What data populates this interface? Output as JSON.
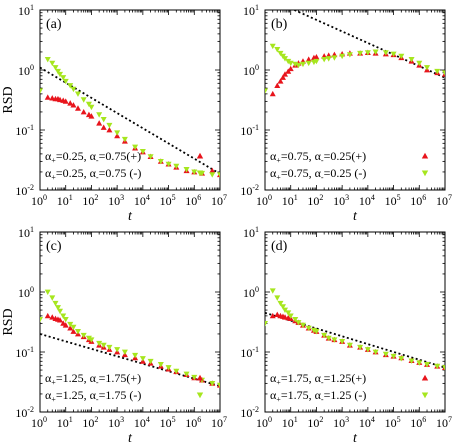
{
  "chart_data": [
    {
      "type": "scatter",
      "panel_label": "(a)",
      "xlabel": "t",
      "ylabel": "RSD",
      "x_scale": "log",
      "y_scale": "log",
      "xlim": [
        1,
        10000000
      ],
      "ylim": [
        0.01,
        10
      ],
      "x_ticks": {
        "base": "10",
        "exponents": [
          "0",
          "1",
          "2",
          "3",
          "4",
          "5",
          "6",
          "7"
        ]
      },
      "y_ticks": {
        "base": "10",
        "exponents": [
          "-2",
          "-1",
          "0",
          "1"
        ]
      },
      "series": [
        {
          "name": "α+=0.25, α-=0.75(+)",
          "marker": "triangle-up",
          "color": "#e8141c",
          "x": [
            2,
            3,
            4,
            5,
            6,
            8,
            10,
            15,
            20,
            30,
            50,
            80,
            100,
            200,
            300,
            500,
            1000,
            2000,
            5000,
            10000,
            20000,
            50000,
            100000,
            200000,
            500000,
            1000000,
            2000000,
            5000000,
            10000000
          ],
          "y": [
            0.35,
            0.34,
            0.33,
            0.33,
            0.32,
            0.31,
            0.3,
            0.28,
            0.26,
            0.23,
            0.2,
            0.18,
            0.17,
            0.13,
            0.11,
            0.1,
            0.08,
            0.065,
            0.05,
            0.043,
            0.036,
            0.03,
            0.027,
            0.024,
            0.021,
            0.02,
            0.019,
            0.021,
            0.018
          ]
        },
        {
          "name": "α+=0.25, α-=0.75 (-)",
          "marker": "triangle-down",
          "color": "#a6e61e",
          "x": [
            1,
            2,
            3,
            4,
            5,
            6,
            8,
            10,
            15,
            20,
            30,
            50,
            80,
            100,
            200,
            300,
            500,
            1000,
            2000,
            5000,
            10000,
            20000,
            50000,
            100000,
            200000,
            500000,
            1000000,
            2000000,
            5000000,
            10000000
          ],
          "y": [
            0.45,
            1.5,
            1.3,
            1.1,
            0.95,
            0.85,
            0.75,
            0.65,
            0.55,
            0.48,
            0.4,
            0.32,
            0.27,
            0.24,
            0.18,
            0.15,
            0.12,
            0.09,
            0.07,
            0.052,
            0.044,
            0.036,
            0.03,
            0.027,
            0.025,
            0.022,
            0.02,
            0.019,
            0.018,
            0.018
          ]
        }
      ],
      "reference_line": {
        "style": "dotted",
        "x": [
          1,
          10000000
        ],
        "y": [
          1.1,
          0.0186
        ]
      },
      "legend_position": "bottom-left"
    },
    {
      "type": "scatter",
      "panel_label": "(b)",
      "xlabel": "t",
      "ylabel": "",
      "x_scale": "log",
      "y_scale": "log",
      "xlim": [
        1,
        10000000
      ],
      "ylim": [
        0.01,
        10
      ],
      "x_ticks": {
        "base": "10",
        "exponents": [
          "0",
          "1",
          "2",
          "3",
          "4",
          "5",
          "6",
          "7"
        ]
      },
      "y_ticks": {
        "base": "10",
        "exponents": [
          "-2",
          "-1",
          "0",
          "1"
        ]
      },
      "series": [
        {
          "name": "α+=0.75, α-=0.25(+)",
          "marker": "triangle-up",
          "color": "#e8141c",
          "x": [
            2,
            3,
            4,
            5,
            6,
            8,
            10,
            15,
            20,
            30,
            50,
            80,
            100,
            200,
            300,
            500,
            1000,
            2000,
            5000,
            10000,
            20000,
            50000,
            100000,
            200000,
            500000,
            1000000,
            2000000,
            5000000,
            10000000
          ],
          "y": [
            0.4,
            0.55,
            0.65,
            0.75,
            0.85,
            0.95,
            1.05,
            1.2,
            1.3,
            1.4,
            1.5,
            1.6,
            1.65,
            1.7,
            1.75,
            1.8,
            1.85,
            1.9,
            1.9,
            1.95,
            1.9,
            1.85,
            1.8,
            1.6,
            1.4,
            1.2,
            1.0,
            0.9,
            0.85
          ]
        },
        {
          "name": "α+=0.75, α-=0.25 (-)",
          "marker": "triangle-down",
          "color": "#a6e61e",
          "x": [
            1,
            2,
            3,
            4,
            5,
            6,
            8,
            10,
            15,
            20,
            30,
            50,
            80,
            100,
            200,
            300,
            500,
            1000,
            2000,
            5000,
            10000,
            20000,
            50000,
            100000,
            200000,
            500000,
            1000000,
            2000000,
            5000000,
            10000000
          ],
          "y": [
            0.45,
            2.5,
            2.2,
            1.9,
            1.7,
            1.55,
            1.4,
            1.3,
            1.25,
            1.2,
            1.25,
            1.3,
            1.35,
            1.4,
            1.5,
            1.55,
            1.6,
            1.7,
            1.8,
            1.9,
            1.95,
            2.0,
            1.95,
            1.85,
            1.7,
            1.5,
            1.3,
            1.1,
            0.95,
            0.9
          ]
        }
      ],
      "reference_line": {
        "style": "dotted",
        "x": [
          14,
          10000000
        ],
        "y": [
          10,
          0.744
        ]
      },
      "legend_position": "bottom-left"
    },
    {
      "type": "scatter",
      "panel_label": "(c)",
      "xlabel": "t",
      "ylabel": "RSD",
      "x_scale": "log",
      "y_scale": "log",
      "xlim": [
        1,
        10000000
      ],
      "ylim": [
        0.01,
        10
      ],
      "x_ticks": {
        "base": "10",
        "exponents": [
          "0",
          "1",
          "2",
          "3",
          "4",
          "5",
          "6",
          "7"
        ]
      },
      "y_ticks": {
        "base": "10",
        "exponents": [
          "-2",
          "-1",
          "0",
          "1"
        ]
      },
      "series": [
        {
          "name": "α+=1.25, α-=1.75(+)",
          "marker": "triangle-up",
          "color": "#e8141c",
          "x": [
            2,
            3,
            4,
            5,
            6,
            8,
            10,
            15,
            20,
            30,
            50,
            80,
            100,
            200,
            300,
            500,
            1000,
            2000,
            5000,
            10000,
            20000,
            50000,
            100000,
            200000,
            500000,
            1000000,
            2000000,
            5000000,
            10000000
          ],
          "y": [
            0.4,
            0.38,
            0.36,
            0.35,
            0.34,
            0.3,
            0.28,
            0.25,
            0.22,
            0.2,
            0.18,
            0.16,
            0.15,
            0.13,
            0.12,
            0.11,
            0.1,
            0.09,
            0.08,
            0.07,
            0.065,
            0.058,
            0.052,
            0.047,
            0.042,
            0.037,
            0.034,
            0.03,
            0.028
          ]
        },
        {
          "name": "α+=1.25, α-=1.75 (-)",
          "marker": "triangle-down",
          "color": "#a6e61e",
          "x": [
            1,
            2,
            3,
            4,
            5,
            6,
            8,
            10,
            15,
            20,
            30,
            50,
            80,
            100,
            200,
            300,
            500,
            1000,
            2000,
            5000,
            10000,
            20000,
            50000,
            100000,
            200000,
            500000,
            1000000,
            2000000,
            5000000,
            10000000
          ],
          "y": [
            0.35,
            1.0,
            0.8,
            0.65,
            0.55,
            0.48,
            0.4,
            0.35,
            0.29,
            0.26,
            0.22,
            0.19,
            0.17,
            0.16,
            0.14,
            0.13,
            0.12,
            0.11,
            0.1,
            0.088,
            0.078,
            0.07,
            0.062,
            0.055,
            0.048,
            0.043,
            0.038,
            0.034,
            0.03,
            0.028
          ]
        }
      ],
      "reference_line": {
        "style": "dotted",
        "x": [
          1,
          10000000
        ],
        "y": [
          0.2,
          0.027
        ]
      },
      "legend_position": "bottom-left"
    },
    {
      "type": "scatter",
      "panel_label": "(d)",
      "xlabel": "t",
      "ylabel": "",
      "x_scale": "log",
      "y_scale": "log",
      "xlim": [
        1,
        10000000
      ],
      "ylim": [
        0.01,
        10
      ],
      "x_ticks": {
        "base": "10",
        "exponents": [
          "0",
          "1",
          "2",
          "3",
          "4",
          "5",
          "6",
          "7"
        ]
      },
      "y_ticks": {
        "base": "10",
        "exponents": [
          "-2",
          "-1",
          "0",
          "1"
        ]
      },
      "series": [
        {
          "name": "α+=1.75, α-=1.25(+)",
          "marker": "triangle-up",
          "color": "#e8141c",
          "x": [
            2,
            3,
            4,
            5,
            6,
            8,
            10,
            15,
            20,
            30,
            50,
            80,
            100,
            200,
            300,
            500,
            1000,
            2000,
            5000,
            10000,
            20000,
            50000,
            100000,
            200000,
            500000,
            1000000,
            2000000,
            5000000,
            10000000
          ],
          "y": [
            0.4,
            0.42,
            0.4,
            0.39,
            0.38,
            0.37,
            0.36,
            0.33,
            0.31,
            0.28,
            0.25,
            0.23,
            0.22,
            0.19,
            0.17,
            0.16,
            0.15,
            0.13,
            0.12,
            0.11,
            0.1,
            0.09,
            0.085,
            0.08,
            0.072,
            0.067,
            0.062,
            0.058,
            0.055
          ]
        },
        {
          "name": "α+=1.75, α-=1.25 (-)",
          "marker": "triangle-down",
          "color": "#a6e61e",
          "x": [
            1,
            2,
            3,
            4,
            5,
            6,
            8,
            10,
            15,
            20,
            30,
            50,
            80,
            100,
            200,
            300,
            500,
            1000,
            2000,
            5000,
            10000,
            20000,
            50000,
            100000,
            200000,
            500000,
            1000000,
            2000000,
            5000000,
            10000000
          ],
          "y": [
            0.3,
            1.05,
            0.8,
            0.65,
            0.57,
            0.5,
            0.45,
            0.4,
            0.35,
            0.31,
            0.28,
            0.25,
            0.23,
            0.22,
            0.19,
            0.17,
            0.16,
            0.15,
            0.13,
            0.12,
            0.11,
            0.1,
            0.092,
            0.085,
            0.078,
            0.071,
            0.066,
            0.062,
            0.058,
            0.055
          ]
        }
      ],
      "reference_line": {
        "style": "dotted",
        "x": [
          1,
          10000000
        ],
        "y": [
          0.45,
          0.055
        ]
      },
      "legend_position": "bottom-left"
    }
  ]
}
